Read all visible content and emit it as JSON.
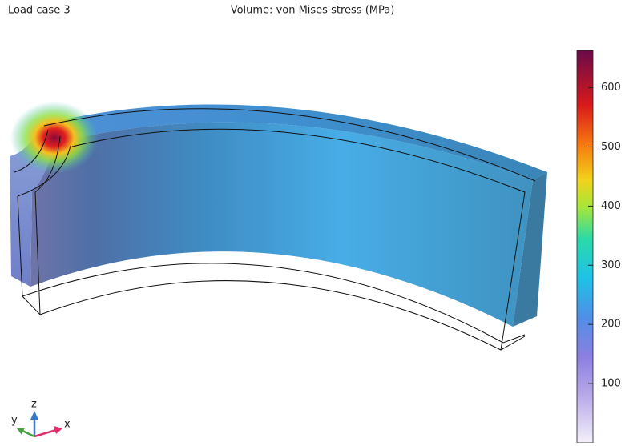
{
  "plot_title": "Load case 3",
  "subtitle": "Volume: von Mises stress (MPa)",
  "colorbar": {
    "range": [
      0,
      663
    ],
    "ticks": [
      100,
      200,
      300,
      400,
      500,
      600
    ]
  },
  "triad": {
    "y": "y",
    "z": "z",
    "x": "x"
  }
}
